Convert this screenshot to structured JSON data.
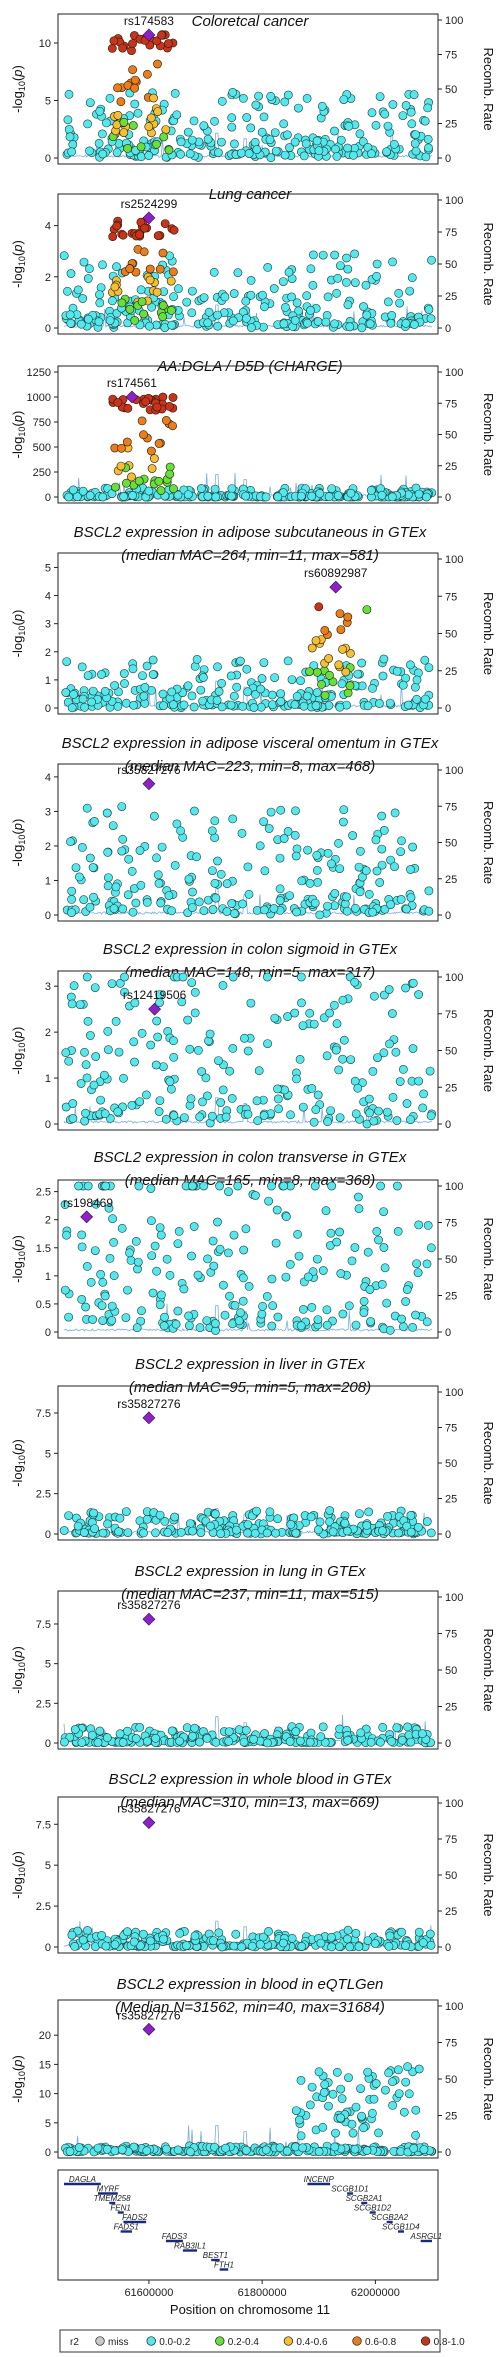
{
  "chart_data": {
    "type": "scatter",
    "y_label": "-log10(p)",
    "y2_label": "Recomb. Rate",
    "y2_ticks": [
      0,
      25,
      50,
      75,
      100
    ],
    "x_label": "Position on chromosome 11",
    "x_ticks": [
      "61600000",
      "61800000",
      "62000000"
    ],
    "x_tick_values": [
      61600000,
      61800000,
      62000000
    ],
    "x_range": [
      61450000,
      62100000
    ],
    "legend": {
      "title": "r2",
      "items": [
        {
          "label": "miss",
          "color": "#c9c9c9"
        },
        {
          "label": "0.0-0.2",
          "color": "#54e8ec"
        },
        {
          "label": "0.2-0.4",
          "color": "#66e03a"
        },
        {
          "label": "0.4-0.6",
          "color": "#f2c037"
        },
        {
          "label": "0.6-0.8",
          "color": "#e87e1c"
        },
        {
          "label": "0.8-1.0",
          "color": "#c8341b"
        }
      ]
    },
    "lead_color": "#8a22c4",
    "panels": [
      {
        "title_lines": [
          "Coloretcal cancer"
        ],
        "ymax": 12,
        "yticks": [
          0,
          5,
          10
        ],
        "lead_snp": "rs174583",
        "lead_x": 61600000,
        "lead_y": 10.7,
        "base_level": 0.55,
        "peak": "chr_fads",
        "peak_height": 10.8
      },
      {
        "title_lines": [
          "Lung cancer"
        ],
        "ymax": 5,
        "yticks": [
          0,
          2,
          4
        ],
        "lead_snp": "rs2524299",
        "lead_x": 61600000,
        "lead_y": 4.3,
        "base_level": 0.28,
        "peak": "chr_fads",
        "peak_height": 4.2
      },
      {
        "title_lines": [
          "AA:DGLA / D5D (CHARGE)"
        ],
        "ymax": 1250,
        "yticks": [
          0,
          250,
          500,
          750,
          1000,
          1250
        ],
        "lead_snp": "rs174561",
        "lead_x": 61570000,
        "lead_y": 1000,
        "base_level": 0.018,
        "peak": "chr_fads",
        "peak_height": 1000
      },
      {
        "title_lines": [
          "BSCL2 expression in adipose subcutaneous in GTEx",
          "(median MAC=264, min=11, max=581)"
        ],
        "ymax": 5.3,
        "yticks": [
          0,
          1,
          2,
          3,
          4,
          5
        ],
        "lead_snp": "rs60892987",
        "lead_x": 61930000,
        "lead_y": 4.3,
        "base_level": 0.17,
        "peak": "bscl2",
        "peak_height": 3.8
      },
      {
        "title_lines": [
          "BSCL2 expression in adipose visceral omentum in GTEx",
          "(median MAC=223, min=8, max=468)"
        ],
        "ymax": 4.2,
        "yticks": [
          0,
          1,
          2,
          3,
          4
        ],
        "lead_snp": "rs35827276",
        "lead_x": 61600000,
        "lead_y": 3.8,
        "base_level": 0.3,
        "peak": "none",
        "peak_height": 0
      },
      {
        "title_lines": [
          "BSCL2 expression in colon sigmoid in GTEx",
          "(median MAC=148, min=5, max=317)"
        ],
        "ymax": 3.2,
        "yticks": [
          0,
          1,
          2,
          3
        ],
        "lead_snp": "rs12419506",
        "lead_x": 61610000,
        "lead_y": 2.5,
        "base_level": 0.33,
        "peak": "none",
        "peak_height": 0
      },
      {
        "title_lines": [
          "BSCL2 expression in colon transverse in GTEx",
          "(median MAC=165, min=8, max=368)"
        ],
        "ymax": 2.6,
        "yticks": [
          0.0,
          0.5,
          1.0,
          1.5,
          2.0,
          2.5
        ],
        "lead_snp": "rs198469",
        "lead_x": 61490000,
        "lead_y": 2.05,
        "base_level": 0.32,
        "peak": "none",
        "peak_height": 0
      },
      {
        "title_lines": [
          "BSCL2 expression in liver in GTEx",
          "(median MAC=95, min=5, max=208)"
        ],
        "ymax": 8.8,
        "yticks": [
          0,
          2.5,
          5.0,
          7.5
        ],
        "lead_snp": "rs35827276",
        "lead_x": 61600000,
        "lead_y": 7.2,
        "base_level": 0.14,
        "peak": "none",
        "peak_height": 0
      },
      {
        "title_lines": [
          "BSCL2 expression in lung in GTEx",
          "(median MAC=237, min=11, max=515)"
        ],
        "ymax": 9.2,
        "yticks": [
          0,
          2.5,
          5.0,
          7.5
        ],
        "lead_snp": "rs35827276",
        "lead_x": 61600000,
        "lead_y": 7.8,
        "base_level": 0.1,
        "peak": "none",
        "peak_height": 0
      },
      {
        "title_lines": [
          "BSCL2 expression in whole blood in GTEx",
          "(median MAC=310, min=13, max=669)"
        ],
        "ymax": 8.8,
        "yticks": [
          0,
          2.5,
          5.0,
          7.5
        ],
        "lead_snp": "rs35827276",
        "lead_x": 61600000,
        "lead_y": 7.6,
        "base_level": 0.1,
        "peak": "none",
        "peak_height": 0
      },
      {
        "title_lines": [
          "BSCL2 expression in blood in eQTLGen",
          "(Median N=31562, min=40, max=31684)"
        ],
        "ymax": 25,
        "yticks": [
          0,
          5,
          10,
          15,
          20
        ],
        "lead_snp": "rs35827276",
        "lead_x": 61600000,
        "lead_y": 21,
        "base_level": 0.1,
        "peak": "eqtlgen",
        "peak_height": 16
      }
    ],
    "genes": [
      {
        "name": "DAGLA",
        "start": 61450000,
        "end": 61515000,
        "row": 0
      },
      {
        "name": "MYRF",
        "start": 61510000,
        "end": 61545000,
        "row": 1
      },
      {
        "name": "TMEM258",
        "start": 61530000,
        "end": 61540000,
        "row": 2
      },
      {
        "name": "FEN1",
        "start": 61545000,
        "end": 61555000,
        "row": 3
      },
      {
        "name": "FADS2",
        "start": 61555000,
        "end": 61595000,
        "row": 4
      },
      {
        "name": "FADS1",
        "start": 61550000,
        "end": 61570000,
        "row": 5
      },
      {
        "name": "FADS3",
        "start": 61630000,
        "end": 61660000,
        "row": 6
      },
      {
        "name": "RAB3IL1",
        "start": 61660000,
        "end": 61685000,
        "row": 7
      },
      {
        "name": "BEST1",
        "start": 61710000,
        "end": 61725000,
        "row": 8
      },
      {
        "name": "FTH1",
        "start": 61725000,
        "end": 61740000,
        "row": 9
      },
      {
        "name": "INCENP",
        "start": 61880000,
        "end": 61920000,
        "row": 0
      },
      {
        "name": "SCGB1D1",
        "start": 61950000,
        "end": 61960000,
        "row": 1
      },
      {
        "name": "SCGB2A1",
        "start": 61975000,
        "end": 61985000,
        "row": 2
      },
      {
        "name": "SCGB1D2",
        "start": 61990000,
        "end": 62000000,
        "row": 3
      },
      {
        "name": "SCGB2A2",
        "start": 62020000,
        "end": 62030000,
        "row": 4
      },
      {
        "name": "SCGB1D4",
        "start": 62040000,
        "end": 62050000,
        "row": 5
      },
      {
        "name": "ASRGL1",
        "start": 62080000,
        "end": 62100000,
        "row": 6
      }
    ]
  }
}
